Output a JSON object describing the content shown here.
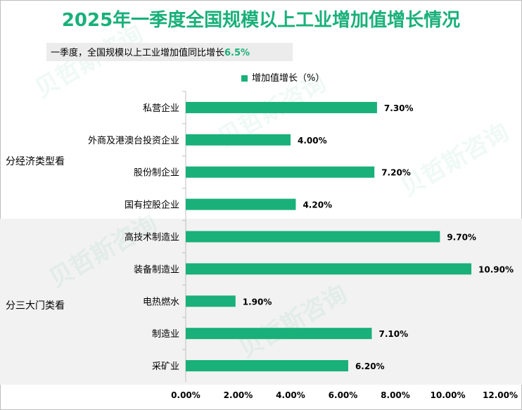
{
  "title": "2025年一季度全国规模以上工业增加值增长情况",
  "subtitle": {
    "text": "一季度，全国规模以上工业增加值同比增长",
    "highlight": "6.5%"
  },
  "watermark": "贝哲斯咨询",
  "colors": {
    "accent": "#19b07a",
    "band": "#f2f2f2"
  },
  "chart_data": {
    "type": "bar",
    "orientation": "horizontal",
    "legend": {
      "label": "增加值增长（%）",
      "position": "top"
    },
    "groups": [
      {
        "label": "分经济类型看",
        "categories": [
          "私营企业",
          "外商及港澳台投资企业",
          "股份制企业",
          "国有控股企业"
        ]
      },
      {
        "label": "分三大门类看",
        "categories": [
          "高技术制造业",
          "装备制造业",
          "电热燃水",
          "制造业",
          "采矿业"
        ]
      }
    ],
    "categories": [
      "私营企业",
      "外商及港澳台投资企业",
      "股份制企业",
      "国有控股企业",
      "高技术制造业",
      "装备制造业",
      "电热燃水",
      "制造业",
      "采矿业"
    ],
    "values": [
      7.3,
      4.0,
      7.2,
      4.2,
      9.7,
      10.9,
      1.9,
      7.1,
      6.2
    ],
    "value_labels": [
      "7.30%",
      "4.00%",
      "7.20%",
      "4.20%",
      "9.70%",
      "10.90%",
      "1.90%",
      "7.10%",
      "6.20%"
    ],
    "xlim": [
      0,
      12
    ],
    "xticks": [
      "0.00%",
      "2.00%",
      "4.00%",
      "6.00%",
      "8.00%",
      "10.00%",
      "12.00%"
    ],
    "grid": false
  }
}
